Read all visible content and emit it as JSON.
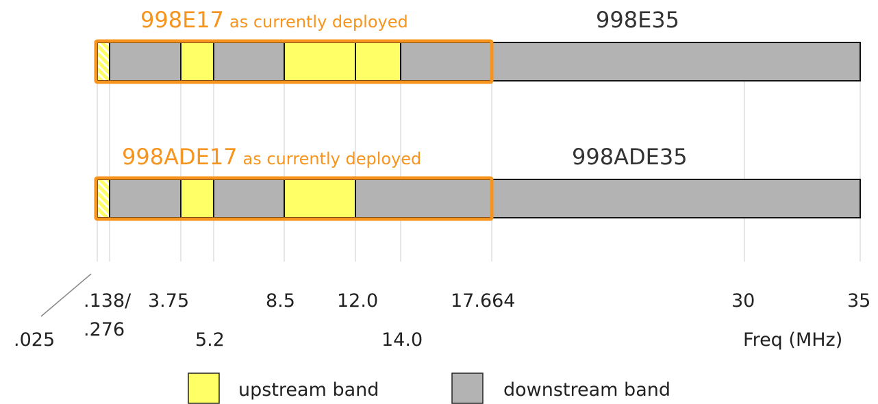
{
  "profiles": [
    {
      "name": "998E17",
      "note": "as currently deployed",
      "extended": "998E35"
    },
    {
      "name": "998ADE17",
      "note": "as currently deployed",
      "extended": "998ADE35"
    }
  ],
  "axis": {
    "ticks_top": [
      ".138/",
      "3.75",
      "8.5",
      "12.0",
      "17.664",
      "30",
      "35"
    ],
    "ticks_bottom": [
      ".025",
      ".276",
      "5.2",
      "14.0"
    ],
    "label": "Freq (MHz)"
  },
  "legend": [
    "upstream band",
    "downstream band"
  ]
}
